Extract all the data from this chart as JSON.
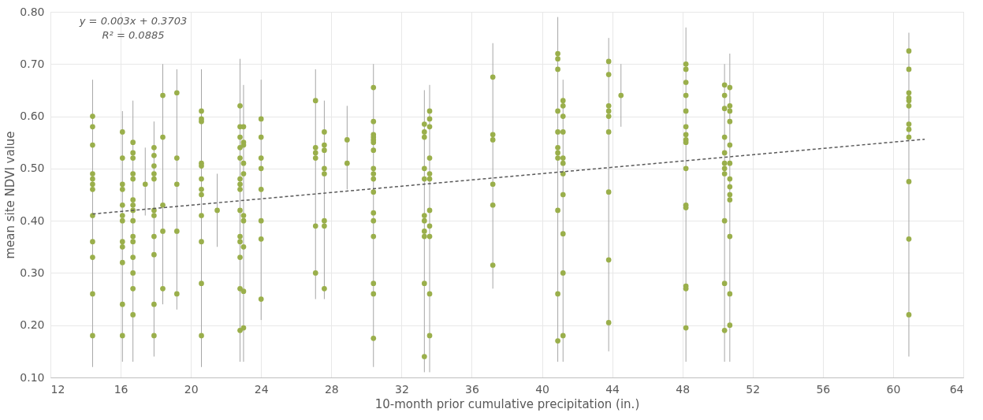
{
  "chart_data": {
    "type": "scatter",
    "xlabel": "10-month prior cumulative precipitation (in.)",
    "ylabel": "mean site NDVI value",
    "annotations": [
      "y = 0.003x + 0.3703",
      "R² = 0.0885"
    ],
    "xlim": [
      12,
      64
    ],
    "xticks": [
      12,
      16,
      20,
      24,
      28,
      32,
      36,
      40,
      44,
      48,
      52,
      56,
      60,
      64
    ],
    "ylim": [
      0.1,
      0.8
    ],
    "yticks": [
      {
        "value": 0.1,
        "label": "0.10"
      },
      {
        "value": 0.2,
        "label": "0.20"
      },
      {
        "value": 0.3,
        "label": "0.30"
      },
      {
        "value": 0.4,
        "label": "0.40"
      },
      {
        "value": 0.5,
        "label": "0.50"
      },
      {
        "value": 0.6,
        "label": "0.60"
      },
      {
        "value": 0.7,
        "label": "0.70"
      },
      {
        "value": 0.8,
        "label": "0.80"
      }
    ],
    "grid": true,
    "marker": "circle",
    "series": [
      {
        "color": "#9aaf4b",
        "x": [
          14.4,
          14.4,
          14.4,
          14.4,
          14.4,
          14.4,
          14.4,
          14.4,
          14.4,
          14.4,
          14.4,
          14.4
        ],
        "values": [
          0.6,
          0.58,
          0.545,
          0.49,
          0.48,
          0.47,
          0.46,
          0.41,
          0.36,
          0.33,
          0.26,
          0.18
        ],
        "errors": [
          [
            0.12,
            0.67
          ],
          null,
          null,
          null,
          null,
          null,
          null,
          null,
          null,
          null,
          null,
          null
        ]
      },
      {
        "color": "#9aaf4b",
        "x": [
          16.1,
          16.1,
          16.1,
          16.1,
          16.1,
          16.1,
          16.1,
          16.1,
          16.1,
          16.1,
          16.1,
          16.1
        ],
        "values": [
          0.57,
          0.52,
          0.47,
          0.46,
          0.43,
          0.41,
          0.4,
          0.36,
          0.35,
          0.32,
          0.24,
          0.18
        ],
        "errors": [
          [
            0.13,
            0.61
          ],
          null,
          null,
          null,
          null,
          null,
          null,
          null,
          null,
          null,
          null,
          null
        ]
      },
      {
        "color": "#9aaf4b",
        "x": [
          16.7,
          16.7,
          16.7,
          16.7,
          16.7,
          16.7,
          16.7,
          16.7,
          16.7,
          16.7,
          16.7,
          16.7,
          16.7,
          16.7,
          16.7
        ],
        "values": [
          0.55,
          0.53,
          0.52,
          0.49,
          0.48,
          0.44,
          0.43,
          0.42,
          0.4,
          0.37,
          0.36,
          0.33,
          0.3,
          0.27,
          0.22
        ],
        "errors": [
          [
            0.13,
            0.63
          ],
          null,
          null,
          null,
          null,
          null,
          null,
          null,
          null,
          null,
          null,
          null,
          null,
          null,
          null
        ]
      },
      {
        "color": "#9aaf4b",
        "x": [
          17.4
        ],
        "values": [
          0.47
        ],
        "errors": [
          [
            0.41,
            0.54
          ]
        ]
      },
      {
        "color": "#9aaf4b",
        "x": [
          17.9,
          17.9,
          17.9,
          17.9,
          17.9,
          17.9,
          17.9,
          17.9,
          17.9,
          17.9,
          17.9
        ],
        "values": [
          0.54,
          0.525,
          0.505,
          0.49,
          0.48,
          0.42,
          0.41,
          0.37,
          0.335,
          0.24,
          0.18
        ],
        "errors": [
          [
            0.14,
            0.59
          ],
          null,
          null,
          null,
          null,
          null,
          null,
          null,
          null,
          null,
          null
        ]
      },
      {
        "color": "#9aaf4b",
        "x": [
          18.4,
          18.4,
          18.4,
          18.4,
          18.4
        ],
        "values": [
          0.64,
          0.56,
          0.43,
          0.38,
          0.27
        ],
        "errors": [
          [
            0.24,
            0.7
          ],
          null,
          null,
          null,
          null
        ]
      },
      {
        "color": "#9aaf4b",
        "x": [
          19.2,
          19.2,
          19.2,
          19.2,
          19.2
        ],
        "values": [
          0.645,
          0.52,
          0.47,
          0.38,
          0.26
        ],
        "errors": [
          [
            0.23,
            0.69
          ],
          null,
          null,
          null,
          null
        ]
      },
      {
        "color": "#9aaf4b",
        "x": [
          20.6,
          20.6,
          20.6,
          20.6,
          20.6,
          20.6,
          20.6,
          20.6,
          20.6,
          20.6,
          20.6,
          20.6
        ],
        "values": [
          0.61,
          0.595,
          0.59,
          0.51,
          0.505,
          0.48,
          0.46,
          0.45,
          0.41,
          0.36,
          0.28,
          0.18
        ],
        "errors": [
          [
            0.12,
            0.69
          ],
          null,
          null,
          null,
          null,
          null,
          null,
          null,
          null,
          null,
          null,
          null
        ]
      },
      {
        "color": "#9aaf4b",
        "x": [
          21.5
        ],
        "values": [
          0.42
        ],
        "errors": [
          [
            0.35,
            0.49
          ]
        ]
      },
      {
        "color": "#9aaf4b",
        "x": [
          22.8,
          22.8,
          22.8,
          22.8,
          22.8,
          22.8,
          22.8,
          22.8,
          22.8,
          22.8,
          22.8,
          22.8,
          22.8,
          22.8
        ],
        "values": [
          0.62,
          0.58,
          0.56,
          0.54,
          0.52,
          0.48,
          0.47,
          0.46,
          0.42,
          0.37,
          0.36,
          0.33,
          0.27,
          0.19
        ],
        "errors": [
          [
            0.13,
            0.71
          ],
          null,
          null,
          null,
          null,
          null,
          null,
          null,
          null,
          null,
          null,
          null,
          null,
          null
        ]
      },
      {
        "color": "#9aaf4b",
        "x": [
          23,
          23,
          23,
          23,
          23,
          23,
          23,
          23,
          23,
          23
        ],
        "values": [
          0.58,
          0.55,
          0.545,
          0.51,
          0.49,
          0.41,
          0.4,
          0.35,
          0.265,
          0.195
        ],
        "errors": [
          [
            0.13,
            0.66
          ],
          null,
          null,
          null,
          null,
          null,
          null,
          null,
          null,
          null
        ]
      },
      {
        "color": "#9aaf4b",
        "x": [
          24,
          24,
          24,
          24,
          24,
          24,
          24,
          24
        ],
        "values": [
          0.595,
          0.56,
          0.52,
          0.5,
          0.46,
          0.4,
          0.365,
          0.25
        ],
        "errors": [
          [
            0.21,
            0.67
          ],
          null,
          null,
          null,
          null,
          null,
          null,
          null
        ]
      },
      {
        "color": "#9aaf4b",
        "x": [
          27.1,
          27.1,
          27.1,
          27.1,
          27.1,
          27.1
        ],
        "values": [
          0.63,
          0.54,
          0.53,
          0.52,
          0.39,
          0.3
        ],
        "errors": [
          [
            0.25,
            0.69
          ],
          null,
          null,
          null,
          null,
          null
        ]
      },
      {
        "color": "#9aaf4b",
        "x": [
          27.6,
          27.6,
          27.6,
          27.6,
          27.6,
          27.6,
          27.6,
          27.6
        ],
        "values": [
          0.57,
          0.545,
          0.535,
          0.5,
          0.49,
          0.4,
          0.39,
          0.27
        ],
        "errors": [
          [
            0.25,
            0.63
          ],
          null,
          null,
          null,
          null,
          null,
          null,
          null
        ]
      },
      {
        "color": "#9aaf4b",
        "x": [
          28.9,
          28.9
        ],
        "values": [
          0.555,
          0.51
        ],
        "errors": [
          [
            0.46,
            0.62
          ],
          null
        ]
      },
      {
        "color": "#9aaf4b",
        "x": [
          30.4,
          30.4,
          30.4,
          30.4,
          30.4,
          30.4,
          30.4,
          30.4,
          30.4,
          30.4,
          30.4,
          30.4,
          30.4,
          30.4,
          30.4,
          30.4,
          30.4
        ],
        "values": [
          0.655,
          0.59,
          0.565,
          0.56,
          0.555,
          0.55,
          0.535,
          0.5,
          0.49,
          0.48,
          0.455,
          0.415,
          0.4,
          0.37,
          0.28,
          0.26,
          0.175
        ],
        "errors": [
          [
            0.12,
            0.7
          ],
          null,
          null,
          null,
          null,
          null,
          null,
          null,
          null,
          null,
          null,
          null,
          null,
          null,
          null,
          null,
          null
        ]
      },
      {
        "color": "#9aaf4b",
        "x": [
          33.3,
          33.3,
          33.3,
          33.3,
          33.3,
          33.3,
          33.3,
          33.3,
          33.3,
          33.3,
          33.3
        ],
        "values": [
          0.585,
          0.57,
          0.56,
          0.5,
          0.48,
          0.41,
          0.4,
          0.38,
          0.37,
          0.28,
          0.14
        ],
        "errors": [
          [
            0.11,
            0.65
          ],
          null,
          null,
          null,
          null,
          null,
          null,
          null,
          null,
          null,
          null
        ]
      },
      {
        "color": "#9aaf4b",
        "x": [
          33.6,
          33.6,
          33.6,
          33.6,
          33.6,
          33.6,
          33.6,
          33.6,
          33.6,
          33.6,
          33.6
        ],
        "values": [
          0.61,
          0.595,
          0.58,
          0.52,
          0.49,
          0.48,
          0.42,
          0.39,
          0.37,
          0.26,
          0.18
        ],
        "errors": [
          [
            0.11,
            0.66
          ],
          null,
          null,
          null,
          null,
          null,
          null,
          null,
          null,
          null,
          null
        ]
      },
      {
        "color": "#9aaf4b",
        "x": [
          37.2,
          37.2,
          37.2,
          37.2,
          37.2,
          37.2
        ],
        "values": [
          0.675,
          0.565,
          0.555,
          0.47,
          0.43,
          0.315
        ],
        "errors": [
          [
            0.27,
            0.74
          ],
          null,
          null,
          null,
          null,
          null
        ]
      },
      {
        "color": "#9aaf4b",
        "x": [
          40.9,
          40.9,
          40.9,
          40.9,
          40.9,
          40.9,
          40.9,
          40.9,
          40.9,
          40.9,
          40.9
        ],
        "values": [
          0.72,
          0.71,
          0.69,
          0.61,
          0.57,
          0.54,
          0.53,
          0.52,
          0.42,
          0.26,
          0.17
        ],
        "errors": [
          [
            0.13,
            0.79
          ],
          null,
          null,
          null,
          null,
          null,
          null,
          null,
          null,
          null,
          null
        ]
      },
      {
        "color": "#9aaf4b",
        "x": [
          41.2,
          41.2,
          41.2,
          41.2,
          41.2,
          41.2,
          41.2,
          41.2,
          41.2,
          41.2,
          41.2
        ],
        "values": [
          0.63,
          0.62,
          0.6,
          0.57,
          0.52,
          0.51,
          0.49,
          0.45,
          0.375,
          0.3,
          0.18
        ],
        "errors": [
          [
            0.13,
            0.67
          ],
          null,
          null,
          null,
          null,
          null,
          null,
          null,
          null,
          null,
          null
        ]
      },
      {
        "color": "#9aaf4b",
        "x": [
          43.8,
          43.8,
          43.8,
          43.8,
          43.8,
          43.8,
          43.8,
          43.8,
          43.8
        ],
        "values": [
          0.705,
          0.68,
          0.62,
          0.61,
          0.6,
          0.57,
          0.455,
          0.325,
          0.205
        ],
        "errors": [
          [
            0.15,
            0.75
          ],
          null,
          null,
          null,
          null,
          null,
          null,
          null,
          null
        ]
      },
      {
        "color": "#9aaf4b",
        "x": [
          44.5
        ],
        "values": [
          0.64
        ],
        "errors": [
          [
            0.58,
            0.7
          ]
        ]
      },
      {
        "color": "#9aaf4b",
        "x": [
          48.2,
          48.2,
          48.2,
          48.2,
          48.2,
          48.2,
          48.2,
          48.2,
          48.2,
          48.2,
          48.2,
          48.2,
          48.2,
          48.2,
          48.2
        ],
        "values": [
          0.7,
          0.69,
          0.665,
          0.64,
          0.61,
          0.58,
          0.565,
          0.555,
          0.55,
          0.5,
          0.43,
          0.425,
          0.275,
          0.27,
          0.195
        ],
        "errors": [
          [
            0.13,
            0.77
          ],
          null,
          null,
          null,
          null,
          null,
          null,
          null,
          null,
          null,
          null,
          null,
          null,
          null,
          null
        ]
      },
      {
        "color": "#9aaf4b",
        "x": [
          50.4,
          50.4,
          50.4,
          50.4,
          50.4,
          50.4,
          50.4,
          50.4,
          50.4,
          50.4,
          50.4
        ],
        "values": [
          0.66,
          0.64,
          0.615,
          0.56,
          0.53,
          0.51,
          0.5,
          0.49,
          0.4,
          0.28,
          0.19
        ],
        "errors": [
          [
            0.13,
            0.7
          ],
          null,
          null,
          null,
          null,
          null,
          null,
          null,
          null,
          null,
          null
        ]
      },
      {
        "color": "#9aaf4b",
        "x": [
          50.7,
          50.7,
          50.7,
          50.7,
          50.7,
          50.7,
          50.7,
          50.7,
          50.7,
          50.7,
          50.7,
          50.7,
          50.7
        ],
        "values": [
          0.655,
          0.62,
          0.61,
          0.59,
          0.545,
          0.51,
          0.48,
          0.465,
          0.45,
          0.44,
          0.37,
          0.26,
          0.2
        ],
        "errors": [
          [
            0.13,
            0.72
          ],
          null,
          null,
          null,
          null,
          null,
          null,
          null,
          null,
          null,
          null,
          null,
          null
        ]
      },
      {
        "color": "#9aaf4b",
        "x": [
          60.9,
          60.9,
          60.9,
          60.9,
          60.9,
          60.9,
          60.9,
          60.9,
          60.9,
          60.9,
          60.9,
          60.9
        ],
        "values": [
          0.725,
          0.69,
          0.645,
          0.635,
          0.63,
          0.62,
          0.585,
          0.575,
          0.56,
          0.475,
          0.365,
          0.22
        ],
        "errors": [
          [
            0.14,
            0.76
          ],
          null,
          null,
          null,
          null,
          null,
          null,
          null,
          null,
          null,
          null,
          null
        ]
      },
      {
        "type": "line",
        "line_style": "dashed",
        "marker": "none",
        "color": "#595959",
        "x": [
          14.4,
          61.8
        ],
        "values": [
          0.413,
          0.556
        ]
      }
    ]
  }
}
